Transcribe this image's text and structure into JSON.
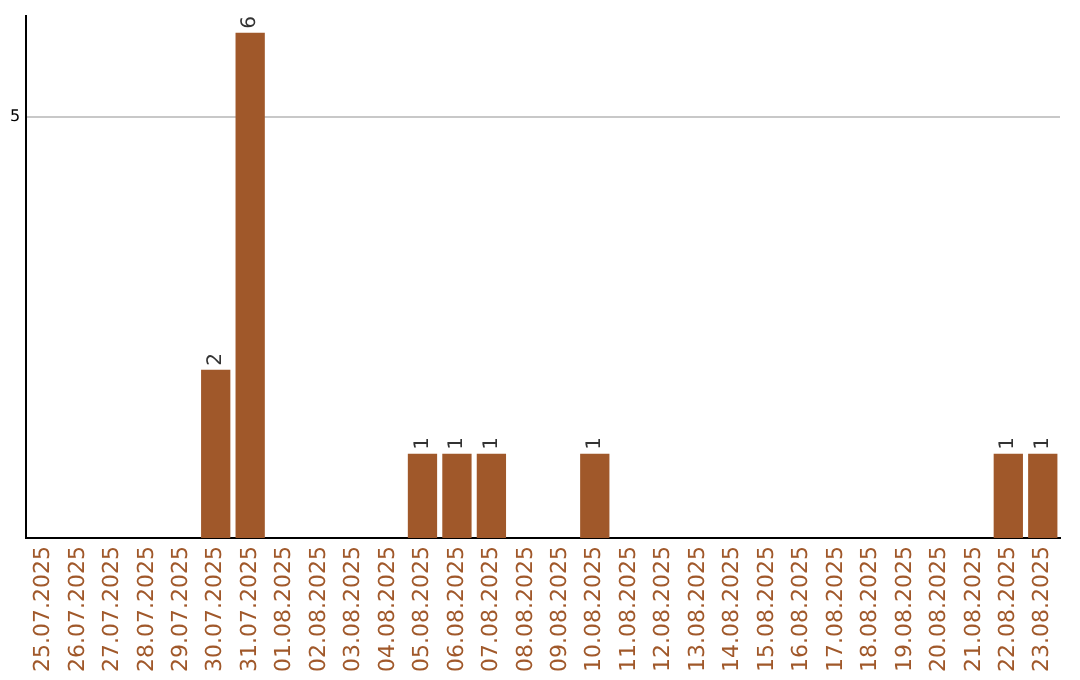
{
  "chart_data": {
    "type": "bar",
    "categories": [
      "25.07.2025",
      "26.07.2025",
      "27.07.2025",
      "28.07.2025",
      "29.07.2025",
      "30.07.2025",
      "31.07.2025",
      "01.08.2025",
      "02.08.2025",
      "03.08.2025",
      "04.08.2025",
      "05.08.2025",
      "06.08.2025",
      "07.08.2025",
      "08.08.2025",
      "09.08.2025",
      "10.08.2025",
      "11.08.2025",
      "12.08.2025",
      "13.08.2025",
      "14.08.2025",
      "15.08.2025",
      "16.08.2025",
      "17.08.2025",
      "18.08.2025",
      "19.08.2025",
      "20.08.2025",
      "21.08.2025",
      "22.08.2025",
      "23.08.2025"
    ],
    "values": [
      0,
      0,
      0,
      0,
      0,
      2,
      6,
      0,
      0,
      0,
      0,
      1,
      1,
      1,
      0,
      0,
      1,
      0,
      0,
      0,
      0,
      0,
      0,
      0,
      0,
      0,
      0,
      0,
      1,
      1
    ],
    "value_labels": [
      null,
      null,
      null,
      null,
      null,
      "2",
      "6",
      null,
      null,
      null,
      null,
      "1",
      "1",
      "1",
      null,
      null,
      "1",
      null,
      null,
      null,
      null,
      null,
      null,
      null,
      null,
      null,
      null,
      null,
      "1",
      "1"
    ],
    "color": "#a0582a",
    "ylim": [
      0,
      6.2
    ],
    "yticks": [
      5
    ],
    "grid": "y",
    "legend": false
  }
}
